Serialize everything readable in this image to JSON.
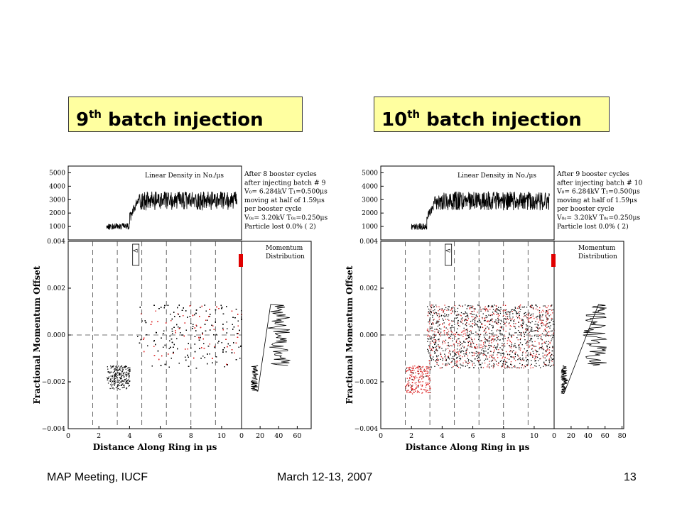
{
  "titles": [
    {
      "num": "9",
      "sup": "th",
      "rest": " batch injection"
    },
    {
      "num": "10",
      "sup": "th",
      "rest": " batch injection"
    }
  ],
  "footer": {
    "left": "MAP Meeting, IUCF",
    "middle": "March 12-13, 2007",
    "page": "13"
  },
  "chart_data": [
    {
      "type": "scatter",
      "title": "9th batch injection",
      "top_plot": {
        "type": "line",
        "label": "Linear Density in No./μs",
        "yticks": [
          "1000",
          "2000",
          "3000",
          "4000",
          "5000"
        ],
        "ylim": [
          0,
          5500
        ],
        "segments": [
          {
            "x": [
              2.5,
              4.0
            ],
            "mean": 1000,
            "noise": 250
          },
          {
            "x": [
              4.0,
              4.6
            ],
            "mean": 1600,
            "noise": 400,
            "ramp_to": 3000
          },
          {
            "x": [
              4.6,
              11.0
            ],
            "mean": 2900,
            "noise": 700
          }
        ]
      },
      "info_lines": [
        "After  8 booster cycles",
        "after injecting batch #  9",
        "V₀= 6.284kV T₁=0.500μs",
        "moving at half of 1.59μs",
        "per booster cycle",
        "V₀ₛ= 3.20kV T₀ₛ=0.250μs",
        "Particle lost  0.0% (    2)"
      ],
      "main_plot": {
        "xlabel": "Distance Along Ring in μs",
        "ylabel": "Fractional Momentum Offset",
        "xticks": [
          "0",
          "2",
          "4",
          "6",
          "8",
          "10"
        ],
        "yticks": [
          "0.004",
          "0.002",
          "0.000",
          "−0.002",
          "−0.004"
        ],
        "xlim": [
          0,
          11.3
        ],
        "ylim": [
          -0.004,
          0.004
        ],
        "dashed_x": [
          1.6,
          3.2,
          4.8,
          6.4,
          8.0,
          9.6
        ],
        "dashed_y": [
          0.0
        ],
        "marker_label": "Δ",
        "clusters": [
          {
            "x": [
              2.5,
              4.0
            ],
            "y": [
              -0.0023,
              -0.0013
            ],
            "count": 220,
            "red_fraction": 0.0
          },
          {
            "x": [
              4.5,
              11.3
            ],
            "y": [
              -0.0014,
              0.0013
            ],
            "count": 1400,
            "red_fraction": 0.35
          }
        ]
      },
      "momentum_plot": {
        "label_line1": "Momentum",
        "label_line2": "Distribution",
        "xticks": [
          "0",
          "20",
          "40",
          "60"
        ],
        "xlim": [
          0,
          75
        ],
        "profile": [
          {
            "y": [
              -0.0024,
              -0.0013
            ],
            "mean": 14,
            "noise": 4
          },
          {
            "y": [
              -0.0013,
              0.0013
            ],
            "mean": 40,
            "noise": 12
          }
        ]
      }
    },
    {
      "type": "scatter",
      "title": "10th batch injection",
      "top_plot": {
        "type": "line",
        "label": "Linear Density in No./μs",
        "yticks": [
          "1000",
          "2000",
          "3000",
          "4000",
          "5000"
        ],
        "ylim": [
          0,
          5500
        ],
        "segments": [
          {
            "x": [
              2.0,
              3.0
            ],
            "mean": 1000,
            "noise": 250
          },
          {
            "x": [
              3.0,
              3.6
            ],
            "mean": 1600,
            "noise": 400,
            "ramp_to": 3000
          },
          {
            "x": [
              3.6,
              11.0
            ],
            "mean": 2900,
            "noise": 700
          }
        ]
      },
      "info_lines": [
        "After  9 booster cycles",
        "after injecting batch # 10",
        "V₀= 6.284kV T₁=0.500μs",
        "moving at half of 1.59μs",
        "per booster cycle",
        "V₀ₛ= 3.20kV T₀ₛ=0.250μs",
        "Particle lost  0.0% (    2)"
      ],
      "main_plot": {
        "xlabel": "Distance Along Ring in μs",
        "ylabel": "Fractional Momentum Offset",
        "xticks": [
          "0",
          "2",
          "4",
          "6",
          "8",
          "10"
        ],
        "yticks": [
          "0.004",
          "0.002",
          "0.000",
          "−0.002",
          "−0.004"
        ],
        "xlim": [
          0,
          11.3
        ],
        "ylim": [
          -0.004,
          0.004
        ],
        "dashed_x": [
          1.6,
          3.2,
          4.8,
          6.4,
          8.0,
          9.6
        ],
        "dashed_y": [
          0.0
        ],
        "marker_label": "Δ",
        "clusters": [
          {
            "x": [
              1.6,
              3.2
            ],
            "y": [
              -0.0025,
              -0.0013
            ],
            "count": 220,
            "red_fraction": 0.9
          },
          {
            "x": [
              3.0,
              11.3
            ],
            "y": [
              -0.0014,
              0.0013
            ],
            "count": 1600,
            "red_fraction": 0.35
          }
        ]
      },
      "momentum_plot": {
        "label_line1": "Momentum",
        "label_line2": "Distribution",
        "xticks": [
          "0",
          "20",
          "40",
          "60",
          "80"
        ],
        "xlim": [
          0,
          82
        ],
        "profile": [
          {
            "y": [
              -0.0025,
              -0.0013
            ],
            "mean": 12,
            "noise": 4
          },
          {
            "y": [
              -0.0013,
              0.0013
            ],
            "mean": 48,
            "noise": 14
          }
        ]
      }
    }
  ]
}
